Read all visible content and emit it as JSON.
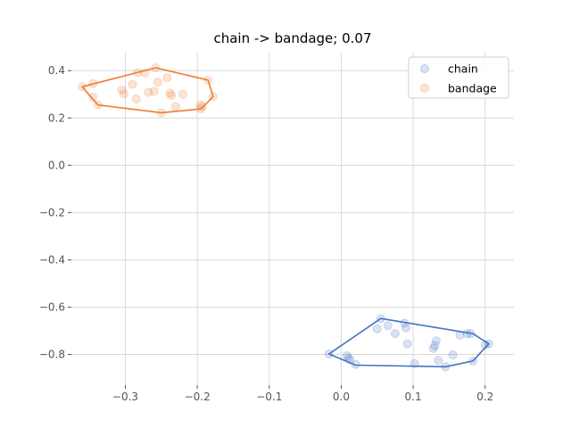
{
  "chart_data": {
    "type": "scatter",
    "title": "chain -> bandage; 0.07",
    "xlabel": "",
    "ylabel": "",
    "xlim": [
      -0.375,
      0.24
    ],
    "ylim": [
      -0.93,
      0.48
    ],
    "xticks": [
      -0.3,
      -0.2,
      -0.1,
      0.0,
      0.1,
      0.2
    ],
    "yticks": [
      0.4,
      0.2,
      0.0,
      -0.2,
      -0.4,
      -0.6,
      -0.8
    ],
    "xtick_labels": [
      "−0.3",
      "−0.2",
      "−0.1",
      "0.0",
      "0.1",
      "0.2"
    ],
    "ytick_labels": [
      "0.4",
      "0.2",
      "0.0",
      "−0.2",
      "−0.4",
      "−0.6",
      "−0.8"
    ],
    "grid": true,
    "legend_position": "top-right",
    "series": [
      {
        "name": "chain",
        "color": "#4472c4",
        "points": [
          [
            -0.017,
            -0.798
          ],
          [
            0.008,
            -0.805
          ],
          [
            0.01,
            -0.815
          ],
          [
            0.012,
            -0.822
          ],
          [
            0.02,
            -0.842
          ],
          [
            0.05,
            -0.692
          ],
          [
            0.055,
            -0.648
          ],
          [
            0.065,
            -0.678
          ],
          [
            0.075,
            -0.712
          ],
          [
            0.088,
            -0.668
          ],
          [
            0.09,
            -0.688
          ],
          [
            0.092,
            -0.755
          ],
          [
            0.102,
            -0.838
          ],
          [
            0.128,
            -0.775
          ],
          [
            0.13,
            -0.762
          ],
          [
            0.132,
            -0.742
          ],
          [
            0.135,
            -0.825
          ],
          [
            0.145,
            -0.852
          ],
          [
            0.155,
            -0.802
          ],
          [
            0.165,
            -0.718
          ],
          [
            0.175,
            -0.712
          ],
          [
            0.18,
            -0.712
          ],
          [
            0.183,
            -0.828
          ],
          [
            0.2,
            -0.76
          ],
          [
            0.205,
            -0.755
          ]
        ],
        "hull": [
          [
            -0.017,
            -0.798
          ],
          [
            0.02,
            -0.845
          ],
          [
            0.145,
            -0.852
          ],
          [
            0.183,
            -0.828
          ],
          [
            0.205,
            -0.755
          ],
          [
            0.183,
            -0.712
          ],
          [
            0.055,
            -0.648
          ]
        ]
      },
      {
        "name": "bandage",
        "color": "#ed7d31",
        "points": [
          [
            -0.36,
            0.332
          ],
          [
            -0.345,
            0.345
          ],
          [
            -0.345,
            0.288
          ],
          [
            -0.338,
            0.255
          ],
          [
            -0.305,
            0.318
          ],
          [
            -0.302,
            0.302
          ],
          [
            -0.29,
            0.342
          ],
          [
            -0.285,
            0.28
          ],
          [
            -0.283,
            0.392
          ],
          [
            -0.273,
            0.39
          ],
          [
            -0.268,
            0.308
          ],
          [
            -0.26,
            0.312
          ],
          [
            -0.258,
            0.412
          ],
          [
            -0.255,
            0.352
          ],
          [
            -0.25,
            0.222
          ],
          [
            -0.242,
            0.37
          ],
          [
            -0.238,
            0.305
          ],
          [
            -0.236,
            0.295
          ],
          [
            -0.23,
            0.248
          ],
          [
            -0.22,
            0.3
          ],
          [
            -0.196,
            0.255
          ],
          [
            -0.195,
            0.238
          ],
          [
            -0.193,
            0.248
          ],
          [
            -0.185,
            0.36
          ],
          [
            -0.178,
            0.29
          ]
        ],
        "hull": [
          [
            -0.36,
            0.332
          ],
          [
            -0.338,
            0.255
          ],
          [
            -0.25,
            0.222
          ],
          [
            -0.195,
            0.238
          ],
          [
            -0.178,
            0.29
          ],
          [
            -0.185,
            0.36
          ],
          [
            -0.258,
            0.412
          ]
        ]
      }
    ]
  }
}
